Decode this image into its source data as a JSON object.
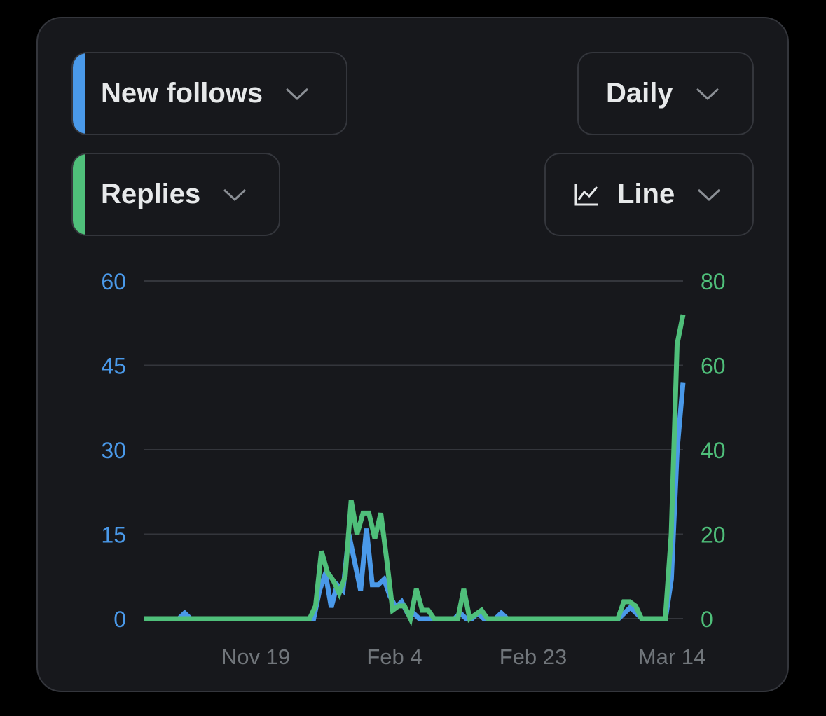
{
  "controls": {
    "metric_primary": {
      "label": "New follows",
      "color": "#4a99e9"
    },
    "metric_secondary": {
      "label": "Replies",
      "color": "#4fbf7a"
    },
    "interval": {
      "label": "Daily"
    },
    "chart_type": {
      "label": "Line",
      "icon": "line-chart-icon"
    }
  },
  "icons": {
    "dropdown": "chevron-down-icon"
  },
  "colors": {
    "background": "#17181c",
    "grid": "#34363c",
    "tick_text": "#71767b"
  },
  "chart_data": {
    "type": "line",
    "x_ticks": [
      "Nov 19",
      "Feb 4",
      "Feb 23",
      "Mar 14"
    ],
    "y_left_ticks": [
      "0",
      "15",
      "30",
      "45",
      "60"
    ],
    "y_right_ticks": [
      "0",
      "20",
      "40",
      "60",
      "80"
    ],
    "ylim_left": [
      0,
      60
    ],
    "ylim_right": [
      0,
      80
    ],
    "grid": true,
    "series": [
      {
        "name": "New follows",
        "axis": "left",
        "color": "#4a99e9",
        "values": [
          0,
          0,
          0,
          0,
          0,
          0,
          0,
          1,
          0,
          0,
          0,
          0,
          0,
          0,
          0,
          0,
          0,
          0,
          0,
          0,
          0,
          0,
          0,
          0,
          0,
          0,
          0,
          0,
          0,
          0,
          5,
          8,
          2,
          6,
          5,
          15,
          10,
          5,
          16,
          6,
          6,
          7,
          4,
          2,
          3,
          1,
          1,
          0,
          0,
          0,
          0,
          0,
          0,
          0,
          1,
          0,
          0,
          1,
          0,
          0,
          0,
          1,
          0,
          0,
          0,
          0,
          0,
          0,
          0,
          0,
          0,
          0,
          0,
          0,
          0,
          0,
          0,
          0,
          0,
          0,
          0,
          0,
          1,
          2,
          1,
          0,
          0,
          0,
          0,
          0,
          7,
          30,
          42
        ]
      },
      {
        "name": "Replies",
        "axis": "right",
        "color": "#4fbf7a",
        "values": [
          0,
          0,
          0,
          0,
          0,
          0,
          0,
          0,
          0,
          0,
          0,
          0,
          0,
          0,
          0,
          0,
          0,
          0,
          0,
          0,
          0,
          0,
          0,
          0,
          0,
          0,
          0,
          0,
          0,
          3,
          16,
          11,
          9,
          6,
          10,
          28,
          20,
          25,
          25,
          19,
          25,
          14,
          2,
          3,
          3,
          0,
          7,
          2,
          2,
          0,
          0,
          0,
          0,
          0,
          7,
          0,
          1,
          2,
          0,
          0,
          0,
          0,
          0,
          0,
          0,
          0,
          0,
          0,
          0,
          0,
          0,
          0,
          0,
          0,
          0,
          0,
          0,
          0,
          0,
          0,
          0,
          4,
          4,
          3,
          0,
          0,
          0,
          0,
          0,
          20,
          65,
          72
        ]
      }
    ]
  }
}
